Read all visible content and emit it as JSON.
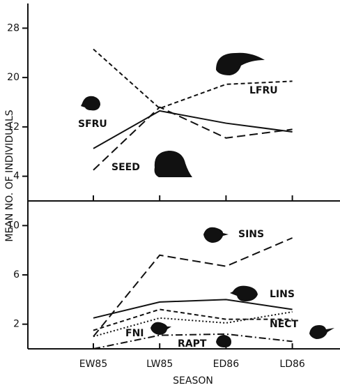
{
  "chart_data": [
    {
      "type": "line",
      "ylabel": "MEAN NO. OF INDIVIDUALS",
      "categories": [
        "EW85",
        "LW85",
        "ED86",
        "LD86"
      ],
      "ylim": [
        0,
        32
      ],
      "yticks": [
        4,
        12,
        20,
        28
      ],
      "series": [
        {
          "name": "LFRU",
          "color": "#111111",
          "style": "short-dash",
          "values": [
            24.6,
            15,
            18.9,
            19.4
          ]
        },
        {
          "name": "SFRU",
          "color": "#111111",
          "style": "solid",
          "values": [
            8.5,
            14.6,
            12.6,
            11.2
          ]
        },
        {
          "name": "SEED",
          "color": "#111111",
          "style": "long-dash",
          "values": [
            5,
            15.2,
            10.2,
            11.6
          ]
        }
      ]
    },
    {
      "type": "line",
      "xlabel": "SEASON",
      "categories": [
        "EW85",
        "LW85",
        "ED86",
        "LD86"
      ],
      "ylim": [
        0,
        12
      ],
      "yticks": [
        2,
        6,
        10
      ],
      "series": [
        {
          "name": "SINS",
          "color": "#111111",
          "style": "long-dash",
          "values": [
            1.0,
            7.6,
            6.7,
            9.0
          ]
        },
        {
          "name": "LINS",
          "color": "#111111",
          "style": "solid",
          "values": [
            2.5,
            3.8,
            4.0,
            3.2
          ]
        },
        {
          "name": "NECT",
          "color": "#111111",
          "style": "short-dash",
          "values": [
            1.5,
            3.2,
            2.4,
            2.4
          ]
        },
        {
          "name": "FNI",
          "color": "#111111",
          "style": "dotted",
          "values": [
            1.0,
            2.5,
            2.1,
            3.0
          ]
        },
        {
          "name": "RAPT",
          "color": "#111111",
          "style": "dash-dot",
          "values": [
            0,
            1.1,
            1.2,
            0.6
          ]
        }
      ]
    }
  ]
}
